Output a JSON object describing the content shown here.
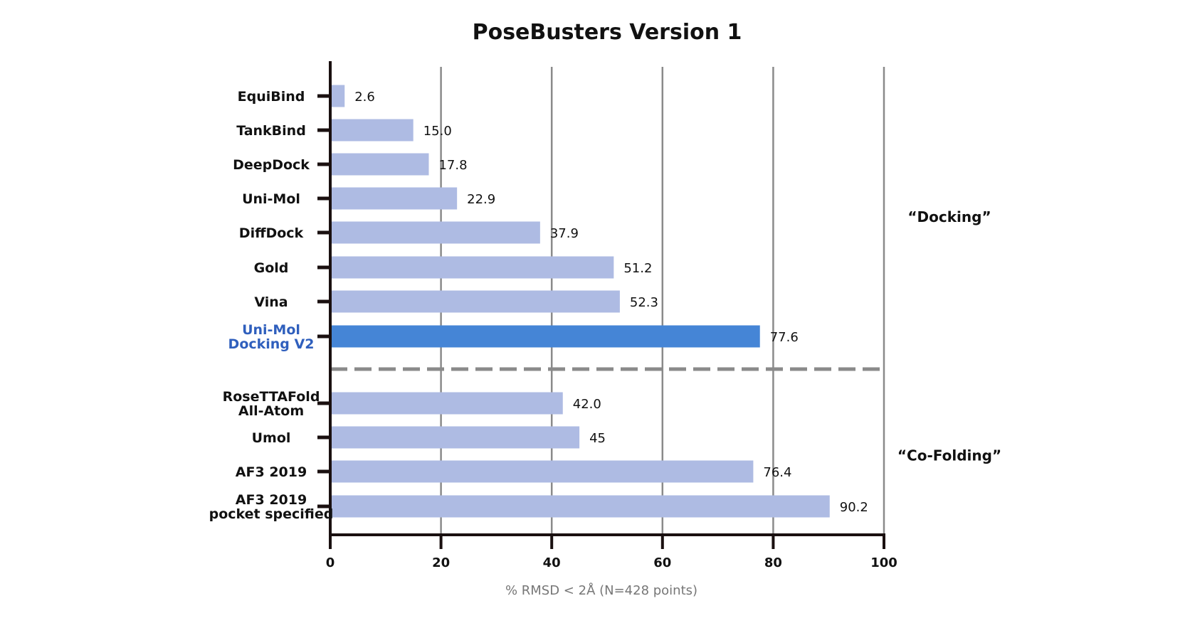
{
  "chart_data": {
    "type": "bar",
    "orientation": "horizontal",
    "title": "PoseBusters Version 1",
    "xlabel": "% RMSD < 2Å (N=428 points)",
    "ylabel": "",
    "xlim": [
      0,
      100
    ],
    "xticks": [
      "0",
      "20",
      "40",
      "60",
      "80",
      "100"
    ],
    "grid": true,
    "categories": [
      [
        "EquiBind"
      ],
      [
        "TankBind"
      ],
      [
        "DeepDock"
      ],
      [
        "Uni-Mol"
      ],
      [
        "DiffDock"
      ],
      [
        "Gold"
      ],
      [
        "Vina"
      ],
      [
        "Uni-Mol",
        "Docking V2"
      ],
      [
        "RoseTTAFold",
        "All-Atom"
      ],
      [
        "Umol"
      ],
      [
        "AF3 2019"
      ],
      [
        "AF3 2019",
        "pocket specified"
      ]
    ],
    "values": [
      2.6,
      15.0,
      17.8,
      22.9,
      37.9,
      51.2,
      52.3,
      77.6,
      42.0,
      45,
      76.4,
      90.2
    ],
    "value_labels": [
      "2.6",
      "15.0",
      "17.8",
      "22.9",
      "37.9",
      "51.2",
      "52.3",
      "77.6",
      "42.0",
      "45",
      "76.4",
      "90.2"
    ],
    "highlight_index": 7,
    "groups": [
      {
        "label": "“Docking”",
        "from": 0,
        "to": 7
      },
      {
        "label": "“Co-Folding”",
        "from": 8,
        "to": 11
      }
    ],
    "separator_after_index": 7,
    "colors": {
      "bar": "#aebbe3",
      "bar_highlight": "#4585d6",
      "highlight_text": "#2f5fbd",
      "grid": "#8a8a8a",
      "axis": "#1a1010",
      "separator": "#8a8a8a"
    }
  }
}
